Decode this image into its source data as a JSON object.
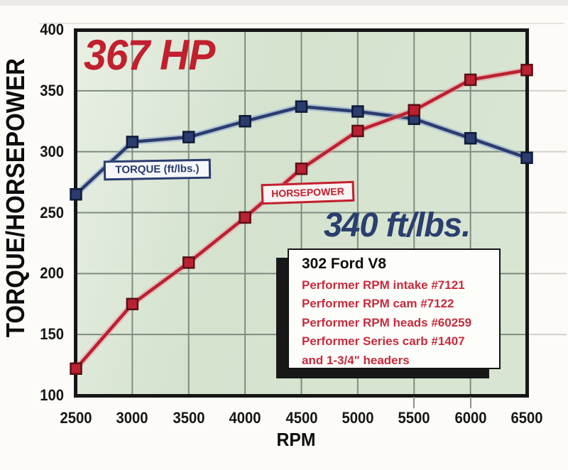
{
  "page": {
    "background": "#fcfbf8"
  },
  "chart_data": {
    "type": "line",
    "title": "",
    "xlabel": "RPM",
    "ylabel": "TORQUE/HORSEPOWER",
    "xlim": [
      2500,
      6500
    ],
    "ylim": [
      100,
      400
    ],
    "grid": true,
    "grid_color": "#7e8d80",
    "plot_bg": "#d4e2ce",
    "plot_bg_light": "#e9efe4",
    "border_color": "#161616",
    "x": [
      2500,
      3000,
      3500,
      4000,
      4500,
      5000,
      5500,
      6000,
      6500
    ],
    "series": [
      {
        "name": "TORQUE (ft/lbs.)",
        "color": "#2b3c6e",
        "marker_stroke": "#101b36",
        "halo": "rgba(130,158,205,0.5)",
        "values": [
          265,
          308,
          312,
          325,
          337,
          333,
          327,
          311,
          295
        ]
      },
      {
        "name": "HORSEPOWER",
        "color": "#bb2130",
        "marker_stroke": "#5a1018",
        "halo": "rgba(233,148,158,0.5)",
        "values": [
          122,
          175,
          209,
          246,
          286,
          317,
          334,
          359,
          367
        ]
      }
    ],
    "yticks": [
      "400",
      "350",
      "300",
      "250",
      "200",
      "150",
      "100"
    ],
    "xticks": [
      "2500",
      "3000",
      "3500",
      "4000",
      "4500",
      "5000",
      "5500",
      "6000",
      "6500"
    ],
    "annotations": {
      "peak_hp": {
        "text": "367 HP",
        "color": "#c1202e"
      },
      "peak_torque": {
        "text": "340 ft/lbs.",
        "color": "#2b3f6e"
      }
    },
    "legend_position": "inside-left"
  },
  "info_box": {
    "title": "302 Ford V8",
    "lines": [
      "Performer RPM intake #7121",
      "Performer RPM cam #7122",
      "Performer RPM heads #60259",
      "Performer Series carb #1407",
      "and 1-3/4\" headers"
    ]
  }
}
